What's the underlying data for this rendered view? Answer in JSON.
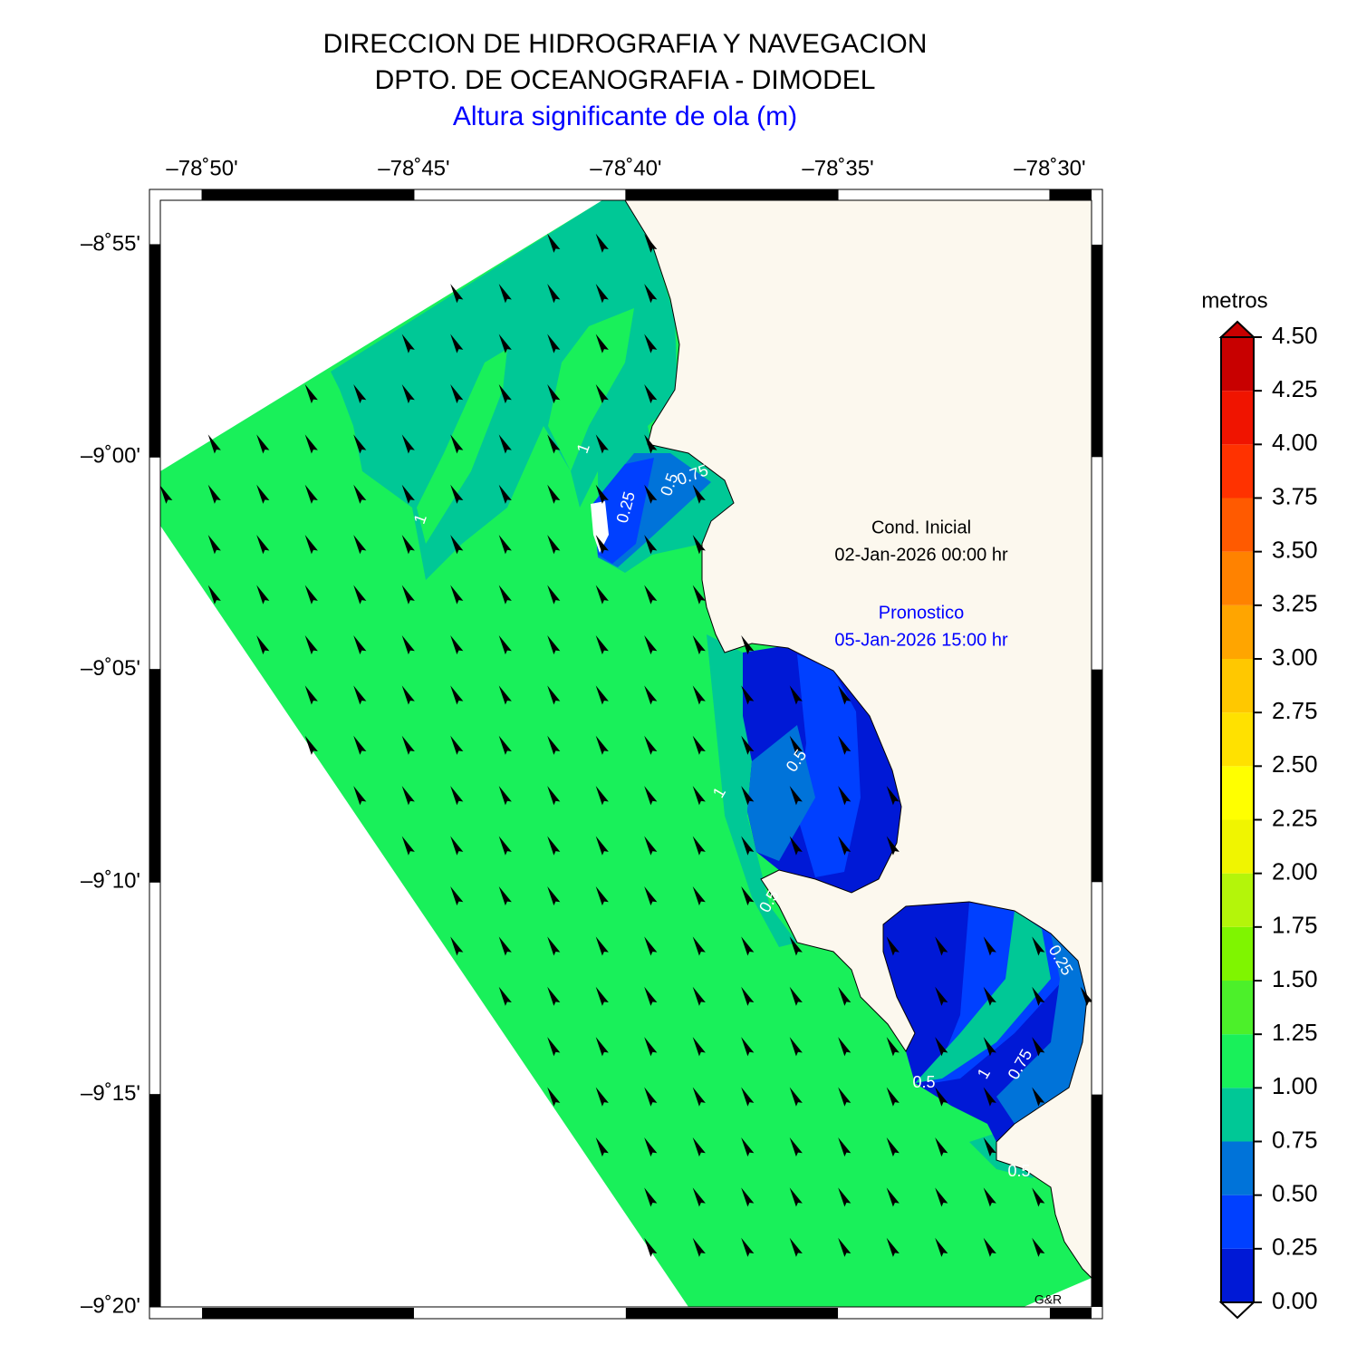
{
  "header": {
    "title": "DIRECCION DE HIDROGRAFIA Y NAVEGACION",
    "subtitle": "DPTO. DE OCEANOGRAFIA - DIMODEL",
    "variable": "Altura significante de ola (m)"
  },
  "map": {
    "lon_range": [
      -78.8497,
      -78.4836
    ],
    "lat_range": [
      -9.3333,
      -8.8993
    ],
    "lon_ticks": [
      {
        "value": -78.8333,
        "label": "–78˚50'"
      },
      {
        "value": -78.75,
        "label": "–78˚45'"
      },
      {
        "value": -78.6667,
        "label": "–78˚40'"
      },
      {
        "value": -78.5833,
        "label": "–78˚35'"
      },
      {
        "value": -78.5,
        "label": "–78˚30'"
      }
    ],
    "lat_ticks": [
      {
        "value": -8.9167,
        "label": "–8˚55'"
      },
      {
        "value": -9.0,
        "label": "–9˚00'"
      },
      {
        "value": -9.0833,
        "label": "–9˚05'"
      },
      {
        "value": -9.1667,
        "label": "–9˚10'"
      },
      {
        "value": -9.25,
        "label": "–9˚15'"
      },
      {
        "value": -9.3333,
        "label": "–9˚20'"
      }
    ],
    "wave_direction_to_deg": 331,
    "contour_labels": [
      "1",
      "1",
      "0.25",
      "0.5",
      "0.75",
      "0.5",
      "1",
      "0.5",
      "0.5",
      "1",
      "0.75",
      "0.25",
      "0.5"
    ],
    "credit": "G&R"
  },
  "annotations": {
    "initial_label": "Cond. Inicial",
    "initial_time": "02-Jan-2026 00:00 hr",
    "forecast_label": "Pronostico",
    "forecast_time": "05-Jan-2026 15:00 hr"
  },
  "colorbar": {
    "label": "metros",
    "range": [
      0,
      4.5
    ],
    "ticks": [
      {
        "value": 0,
        "label": "0.00"
      },
      {
        "value": 0.25,
        "label": "0.25"
      },
      {
        "value": 0.5,
        "label": "0.50"
      },
      {
        "value": 0.75,
        "label": "0.75"
      },
      {
        "value": 1,
        "label": "1.00"
      },
      {
        "value": 1.25,
        "label": "1.25"
      },
      {
        "value": 1.5,
        "label": "1.50"
      },
      {
        "value": 1.75,
        "label": "1.75"
      },
      {
        "value": 2,
        "label": "2.00"
      },
      {
        "value": 2.25,
        "label": "2.25"
      },
      {
        "value": 2.5,
        "label": "2.50"
      },
      {
        "value": 2.75,
        "label": "2.75"
      },
      {
        "value": 3,
        "label": "3.00"
      },
      {
        "value": 3.25,
        "label": "3.25"
      },
      {
        "value": 3.5,
        "label": "3.50"
      },
      {
        "value": 3.75,
        "label": "3.75"
      },
      {
        "value": 4,
        "label": "4.00"
      },
      {
        "value": 4.25,
        "label": "4.25"
      },
      {
        "value": 4.5,
        "label": "4.50"
      }
    ],
    "colors": [
      "#0019d6",
      "#0040ff",
      "#0073d9",
      "#00c896",
      "#19f05a",
      "#4cf02a",
      "#7ff500",
      "#b4f50a",
      "#f0f500",
      "#ffff00",
      "#ffe100",
      "#ffc800",
      "#ffa500",
      "#ff8200",
      "#ff5a00",
      "#ff3200",
      "#f01400",
      "#c80000"
    ]
  }
}
